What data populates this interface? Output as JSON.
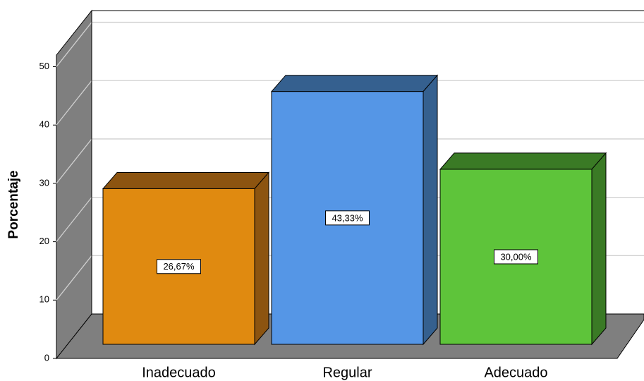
{
  "chart_data": {
    "type": "bar3d",
    "y_label": "Porcentaje",
    "categories": [
      "Inadecuado",
      "Regular",
      "Adecuado"
    ],
    "values": [
      26.67,
      43.33,
      30.0
    ],
    "value_labels": [
      "26,67%",
      "43,33%",
      "30,00%"
    ],
    "colors": [
      "#e08a10",
      "#5596e6",
      "#5ec43a"
    ],
    "side_colors": [
      "#8c5410",
      "#35608f",
      "#3a7a25"
    ],
    "ylim": [
      0,
      52
    ],
    "yticks": [
      0,
      10,
      20,
      30,
      40,
      50
    ],
    "grid": true
  }
}
